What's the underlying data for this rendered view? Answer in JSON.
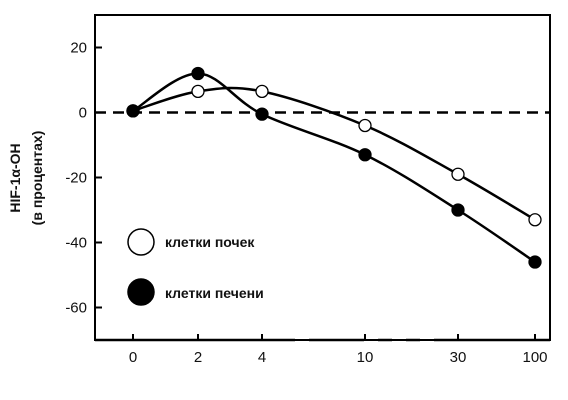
{
  "chart_data": {
    "type": "line",
    "ylabel": "HIF-1α-OH",
    "ylabel_sub": "(в процентах)",
    "x_ticks": [
      "0",
      "2",
      "4",
      "10",
      "30",
      "100"
    ],
    "y_ticks": [
      "20",
      "0",
      "-20",
      "-40",
      "-60"
    ],
    "ylim": [
      -70,
      30
    ],
    "reference_line": 0,
    "grid": false,
    "legend_position": "bottom-left",
    "series": [
      {
        "name": "клетки почек",
        "marker": "open-circle",
        "color": "#000000",
        "points": [
          {
            "x": "0",
            "y": 0.5
          },
          {
            "x": "2",
            "y": 6.5
          },
          {
            "x": "4",
            "y": 6.5
          },
          {
            "x": "10",
            "y": -4
          },
          {
            "x": "30",
            "y": -19
          },
          {
            "x": "100",
            "y": -33
          }
        ]
      },
      {
        "name": "клетки печени",
        "marker": "filled-circle",
        "color": "#000000",
        "points": [
          {
            "x": "0",
            "y": 0.5
          },
          {
            "x": "2",
            "y": 12
          },
          {
            "x": "4",
            "y": -0.5
          },
          {
            "x": "10",
            "y": -13
          },
          {
            "x": "30",
            "y": -30
          },
          {
            "x": "100",
            "y": -46
          }
        ]
      }
    ]
  }
}
